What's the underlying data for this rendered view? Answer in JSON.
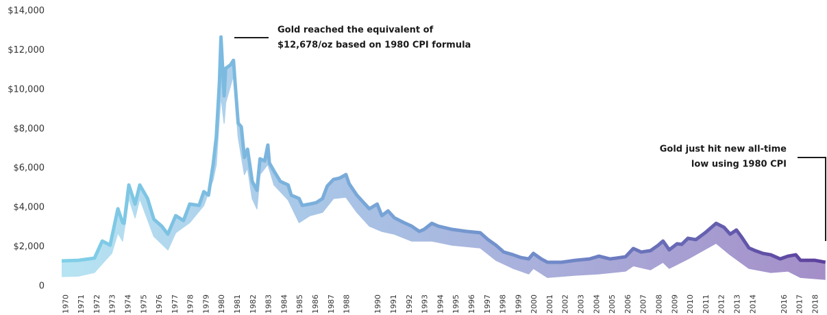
{
  "chart_data": {
    "type": "band-line",
    "xlim": [
      1969.9,
      2018.9
    ],
    "xticks": [
      1970,
      1971,
      1972,
      1973,
      1974,
      1975,
      1976,
      1977,
      1978,
      1979,
      1980,
      1981,
      1982,
      1983,
      1984,
      1985,
      1986,
      1987,
      1988,
      1990,
      1991,
      1992,
      1993,
      1994,
      1995,
      1996,
      1997,
      1998,
      1999,
      2000,
      2001,
      2002,
      2003,
      2004,
      2005,
      2006,
      2007,
      2008,
      2009,
      2010,
      2011,
      2012,
      2013,
      2014,
      2016,
      2017,
      2018
    ],
    "ylim": [
      0,
      14000
    ],
    "yticks": [
      0,
      {
        "value": 2000,
        "label": "$2,000"
      },
      {
        "value": 4000,
        "label": "$4,000"
      },
      {
        "value": 6000,
        "label": "$6,000"
      },
      {
        "value": 8000,
        "label": "$8,000"
      },
      {
        "value": 10000,
        "label": "$10,000"
      },
      {
        "value": 12000,
        "label": "$12,000"
      },
      {
        "value": 14000,
        "label": "$14,000"
      }
    ],
    "grid": false,
    "series": [
      {
        "colors": [
          "#80d0e8",
          "#7aaedb",
          "#6f86c6",
          "#5c3f9c"
        ],
        "x": [
          1969.9,
          1971.0,
          1972.0,
          1972.5,
          1973.0,
          1973.5,
          1973.8,
          1973.9,
          1974.2,
          1974.6,
          1974.9,
          1975.4,
          1975.8,
          1976.3,
          1976.7,
          1977.2,
          1977.7,
          1978.1,
          1978.7,
          1979.0,
          1979.3,
          1979.6,
          1979.8,
          1980.0,
          1980.1,
          1980.3,
          1980.4,
          1980.7,
          1980.9,
          1981.0,
          1981.2,
          1981.4,
          1981.6,
          1981.8,
          1982.1,
          1982.4,
          1982.6,
          1982.9,
          1983.1,
          1983.2,
          1983.5,
          1983.9,
          1984.4,
          1984.6,
          1985.1,
          1985.3,
          1985.8,
          1986.2,
          1986.6,
          1986.9,
          1987.3,
          1987.7,
          1988.1,
          1988.3,
          1988.8,
          1989.2,
          1989.6,
          1990.1,
          1990.4,
          1990.8,
          1991.2,
          1991.8,
          1992.3,
          1992.8,
          1993.1,
          1993.6,
          1994.0,
          1994.9,
          1995.8,
          1996.7,
          1997.2,
          1997.7,
          1998.2,
          1998.8,
          1999.3,
          1999.8,
          2000.1,
          2000.6,
          2001.0,
          2001.9,
          2002.8,
          2003.7,
          2004.3,
          2005.0,
          2005.4,
          2006.0,
          2006.5,
          2007.0,
          2007.6,
          2008.1,
          2008.4,
          2008.8,
          2009.3,
          2009.6,
          2010.0,
          2010.5,
          2011.1,
          2011.8,
          2012.3,
          2012.7,
          2013.1,
          2013.4,
          2013.9,
          2014.3,
          2014.8,
          2015.3,
          2015.9,
          2016.4,
          2016.9,
          2017.2,
          2018.1,
          2018.8
        ],
        "values": [
          1290,
          1320,
          1430,
          2300,
          2090,
          3940,
          3240,
          3200,
          5150,
          4180,
          5150,
          4460,
          3410,
          3060,
          2650,
          3590,
          3340,
          4180,
          4110,
          4810,
          4630,
          6200,
          7590,
          10380,
          12678,
          9680,
          11080,
          11250,
          11490,
          10380,
          8290,
          8110,
          6550,
          6970,
          5330,
          4880,
          6480,
          6370,
          7180,
          6270,
          5850,
          5330,
          5150,
          4630,
          4460,
          4110,
          4180,
          4250,
          4460,
          5090,
          5430,
          5500,
          5680,
          5220,
          4630,
          4280,
          3940,
          4180,
          3590,
          3830,
          3480,
          3240,
          3060,
          2790,
          2890,
          3200,
          3060,
          2890,
          2790,
          2720,
          2370,
          2090,
          1740,
          1600,
          1460,
          1390,
          1670,
          1390,
          1220,
          1220,
          1320,
          1390,
          1530,
          1390,
          1430,
          1500,
          1920,
          1740,
          1810,
          2090,
          2300,
          1850,
          2160,
          2130,
          2440,
          2370,
          2720,
          3200,
          3000,
          2650,
          2860,
          2540,
          1950,
          1810,
          1670,
          1600,
          1390,
          1530,
          1600,
          1320,
          1320,
          1220
        ]
      },
      {
        "colors": [
          "#b7e4f3",
          "#a9c6e7",
          "#a9acd9",
          "#a48ec8"
        ],
        "x": [
          1969.9,
          1971.0,
          1972.0,
          1972.5,
          1973.1,
          1973.5,
          1973.8,
          1974.2,
          1974.6,
          1974.9,
          1975.8,
          1976.7,
          1977.2,
          1978.1,
          1979.0,
          1979.6,
          1979.8,
          1980.0,
          1980.1,
          1980.3,
          1980.4,
          1980.9,
          1981.2,
          1981.6,
          1981.8,
          1982.1,
          1982.4,
          1982.6,
          1983.1,
          1983.5,
          1984.4,
          1985.1,
          1985.8,
          1986.6,
          1987.3,
          1988.1,
          1988.8,
          1989.6,
          1990.4,
          1991.2,
          1992.3,
          1993.6,
          1994.9,
          1996.7,
          1997.7,
          1998.8,
          1999.8,
          2000.1,
          2001.0,
          2002.8,
          2004.3,
          2006.0,
          2006.5,
          2007.6,
          2008.4,
          2008.8,
          2010.0,
          2011.8,
          2012.7,
          2013.9,
          2015.3,
          2016.4,
          2017.2,
          2018.8
        ],
        "values": [
          490,
          520,
          700,
          1150,
          1670,
          2720,
          2300,
          4460,
          3480,
          4460,
          2540,
          1850,
          2720,
          3240,
          4110,
          5430,
          6200,
          8640,
          9680,
          8290,
          9330,
          10730,
          7590,
          5680,
          6030,
          4460,
          3940,
          5680,
          6200,
          5150,
          4390,
          3240,
          3590,
          3760,
          4460,
          4530,
          3760,
          3060,
          2790,
          2650,
          2300,
          2300,
          2090,
          1950,
          1320,
          910,
          630,
          910,
          450,
          560,
          630,
          770,
          1040,
          840,
          1220,
          910,
          1390,
          2190,
          1600,
          910,
          700,
          770,
          450,
          350
        ]
      }
    ],
    "annotations": [
      {
        "lines": [
          "Gold reached the equivalent of",
          "$12,678/oz based on 1980 CPI formula"
        ]
      },
      {
        "lines": [
          "Gold just hit new all-time",
          "low using 1980 CPI"
        ]
      }
    ]
  }
}
